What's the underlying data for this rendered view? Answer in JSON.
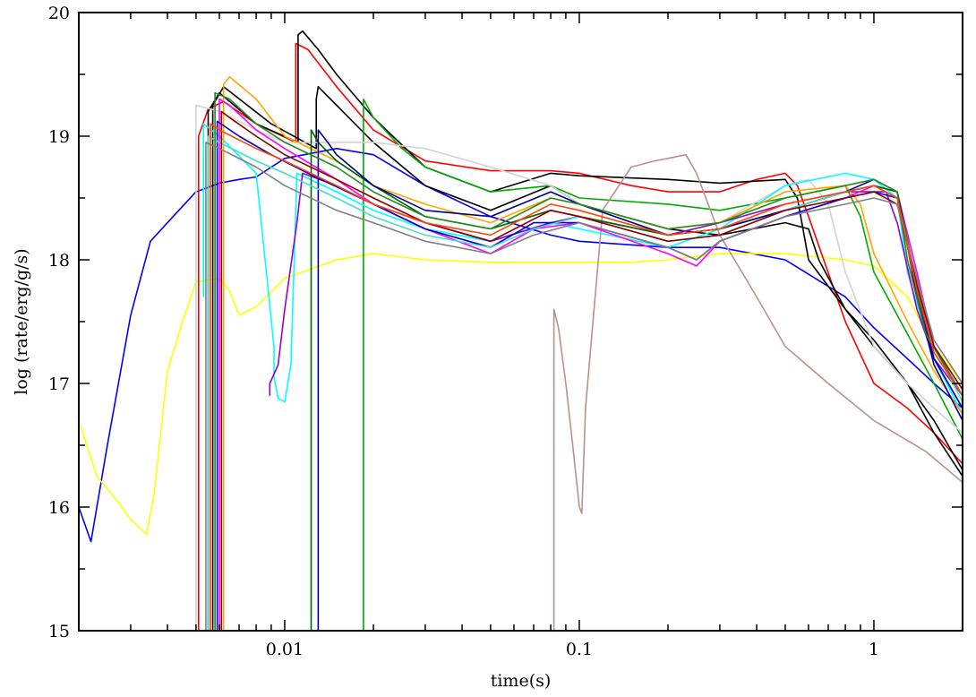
{
  "chart_data": {
    "type": "line",
    "title": "",
    "xlabel": "time(s)",
    "ylabel": "log (rate/erg/g/s)",
    "xscale": "log",
    "xlim": [
      0.002,
      2.0
    ],
    "ylim": [
      15,
      20
    ],
    "grid": false,
    "legend": "none",
    "x_tick_labels": [
      {
        "value": 0.01,
        "label": "0.01"
      },
      {
        "value": 0.1,
        "label": "0.1"
      },
      {
        "value": 1,
        "label": "1"
      }
    ],
    "y_tick_labels": [
      {
        "value": 15,
        "label": "15"
      },
      {
        "value": 16,
        "label": "16"
      },
      {
        "value": 17,
        "label": "17"
      },
      {
        "value": 18,
        "label": "18"
      },
      {
        "value": 19,
        "label": "19"
      },
      {
        "value": 20,
        "label": "20"
      }
    ],
    "series": [
      {
        "color": "#0000ff",
        "x": [
          0.002,
          0.0022,
          0.0025,
          0.003,
          0.0035,
          0.004,
          0.005,
          0.006,
          0.007,
          0.008,
          0.01,
          0.015,
          0.02,
          0.03,
          0.05,
          0.08,
          0.1,
          0.2,
          0.3,
          0.5,
          0.8,
          1.0,
          1.3,
          1.6,
          2.0
        ],
        "y": [
          16.0,
          15.72,
          16.5,
          17.55,
          18.15,
          18.3,
          18.55,
          18.62,
          18.65,
          18.67,
          18.82,
          18.9,
          18.85,
          18.6,
          18.35,
          18.2,
          18.15,
          18.1,
          18.1,
          18.0,
          17.7,
          17.45,
          17.2,
          17.0,
          16.8
        ]
      },
      {
        "color": "#ffff00",
        "x": [
          0.002,
          0.0023,
          0.0027,
          0.003,
          0.0034,
          0.0036,
          0.004,
          0.0045,
          0.005,
          0.006,
          0.0065,
          0.007,
          0.008,
          0.01,
          0.015,
          0.02,
          0.03,
          0.05,
          0.1,
          0.15,
          0.2,
          0.3,
          0.5,
          0.8,
          1.0,
          1.3,
          1.6,
          2.0
        ],
        "y": [
          16.7,
          16.25,
          16.05,
          15.9,
          15.78,
          16.1,
          17.1,
          17.5,
          17.82,
          17.85,
          17.75,
          17.55,
          17.62,
          17.85,
          18.0,
          18.05,
          18.0,
          17.98,
          17.98,
          17.98,
          18.0,
          18.05,
          18.05,
          18.0,
          17.95,
          17.7,
          17.3,
          17.0
        ]
      },
      {
        "color": "#ff0000",
        "x": [
          0.0051,
          0.0051,
          0.0055,
          0.0062,
          0.008,
          0.0109,
          0.0109,
          0.012,
          0.015,
          0.02,
          0.03,
          0.05,
          0.08,
          0.1,
          0.15,
          0.2,
          0.3,
          0.4,
          0.5,
          0.55,
          0.6,
          0.8,
          1.0,
          1.3,
          1.6,
          2.0
        ],
        "y": [
          15.0,
          19.0,
          19.22,
          19.28,
          19.1,
          18.95,
          19.75,
          19.7,
          19.4,
          19.05,
          18.8,
          18.72,
          18.72,
          18.7,
          18.6,
          18.55,
          18.55,
          18.65,
          18.7,
          18.6,
          18.35,
          17.5,
          17.0,
          16.8,
          16.6,
          16.35
        ]
      },
      {
        "color": "#000000",
        "x": [
          0.0055,
          0.0055,
          0.006,
          0.008,
          0.0111,
          0.0111,
          0.0115,
          0.013,
          0.015,
          0.02,
          0.03,
          0.05,
          0.08,
          0.1,
          0.2,
          0.3,
          0.5,
          0.55,
          0.6,
          0.8,
          1.0,
          1.3,
          1.6,
          2.0
        ],
        "y": [
          15.0,
          19.2,
          19.35,
          19.1,
          18.95,
          19.82,
          19.85,
          19.7,
          19.5,
          19.15,
          18.75,
          18.55,
          18.7,
          18.68,
          18.65,
          18.62,
          18.65,
          18.5,
          18.0,
          17.6,
          17.35,
          17.0,
          16.7,
          16.3
        ]
      },
      {
        "color": "#000000",
        "x": [
          0.0057,
          0.0057,
          0.0062,
          0.009,
          0.0128,
          0.0128,
          0.013,
          0.015,
          0.02,
          0.03,
          0.05,
          0.08,
          0.1,
          0.2,
          0.3,
          0.5,
          0.6,
          0.65,
          0.8,
          1.0,
          1.3,
          1.6,
          2.0
        ],
        "y": [
          15.0,
          19.25,
          19.4,
          19.1,
          18.9,
          19.3,
          19.4,
          19.25,
          18.95,
          18.6,
          18.4,
          18.6,
          18.45,
          18.25,
          18.2,
          18.3,
          18.25,
          18.0,
          17.6,
          17.3,
          17.0,
          16.6,
          16.25
        ]
      },
      {
        "color": "#00aa00",
        "x": [
          0.0185,
          0.0185,
          0.02,
          0.025,
          0.03,
          0.05,
          0.08,
          0.1,
          0.2,
          0.3,
          0.5,
          0.8,
          0.9,
          1.0,
          1.3,
          1.6,
          2.0
        ],
        "y": [
          15.0,
          19.3,
          19.15,
          18.9,
          18.75,
          18.55,
          18.6,
          18.5,
          18.45,
          18.4,
          18.5,
          18.6,
          18.35,
          17.9,
          17.4,
          17.0,
          16.55
        ]
      },
      {
        "color": "#bc8f8f",
        "x": [
          0.082,
          0.082,
          0.085,
          0.09,
          0.095,
          0.1,
          0.102,
          0.105,
          0.12,
          0.15,
          0.18,
          0.2,
          0.23,
          0.25,
          0.3,
          0.4,
          0.5,
          0.7,
          1.0,
          1.5,
          2.0
        ],
        "y": [
          15.0,
          17.6,
          17.45,
          17.0,
          16.5,
          16.0,
          15.95,
          16.8,
          18.4,
          18.75,
          18.8,
          18.82,
          18.85,
          18.7,
          18.2,
          17.7,
          17.3,
          17.0,
          16.7,
          16.45,
          16.2
        ]
      },
      {
        "color": "#d3d3d3",
        "x": [
          0.005,
          0.005,
          0.006,
          0.008,
          0.01,
          0.015,
          0.02,
          0.03,
          0.05,
          0.08,
          0.1,
          0.2,
          0.3,
          0.5,
          0.6,
          0.7,
          0.8,
          1.0,
          1.3,
          1.6,
          2.0
        ],
        "y": [
          15.0,
          19.25,
          19.2,
          19.05,
          18.95,
          18.95,
          18.95,
          18.9,
          18.75,
          18.6,
          18.45,
          18.2,
          18.3,
          18.6,
          18.65,
          18.45,
          17.9,
          17.3,
          17.0,
          16.8,
          16.6
        ]
      },
      {
        "color": "#00ffff",
        "x": [
          0.0053,
          0.0053,
          0.006,
          0.008,
          0.0092,
          0.0092,
          0.0095,
          0.01,
          0.0105,
          0.011,
          0.015,
          0.02,
          0.03,
          0.05,
          0.08,
          0.1,
          0.2,
          0.3,
          0.5,
          0.8,
          1.0,
          1.2,
          1.3,
          1.6,
          2.0
        ],
        "y": [
          17.7,
          19.1,
          19.0,
          18.7,
          17.3,
          17.05,
          16.88,
          16.85,
          17.15,
          18.7,
          18.55,
          18.4,
          18.25,
          18.15,
          18.3,
          18.25,
          18.1,
          18.25,
          18.6,
          18.7,
          18.65,
          18.5,
          17.9,
          17.2,
          16.75
        ]
      },
      {
        "color": "#9400d3",
        "x": [
          0.0089,
          0.0089,
          0.0095,
          0.01,
          0.011,
          0.0115,
          0.015,
          0.02,
          0.03,
          0.05,
          0.08,
          0.1,
          0.2,
          0.3,
          0.5,
          0.8,
          1.0,
          1.1,
          1.2,
          1.4,
          1.6,
          2.0
        ],
        "y": [
          16.9,
          17.0,
          17.15,
          17.6,
          18.3,
          18.7,
          18.6,
          18.45,
          18.3,
          18.15,
          18.3,
          18.35,
          18.2,
          18.3,
          18.45,
          18.55,
          18.55,
          18.55,
          18.3,
          17.6,
          17.2,
          16.9
        ]
      },
      {
        "color": "#ffa500",
        "x": [
          0.0062,
          0.0062,
          0.0065,
          0.008,
          0.01,
          0.015,
          0.02,
          0.03,
          0.05,
          0.08,
          0.1,
          0.2,
          0.3,
          0.5,
          0.8,
          0.9,
          1.0,
          1.3,
          1.6,
          2.0
        ],
        "y": [
          15.0,
          19.42,
          19.48,
          19.3,
          19.0,
          18.8,
          18.6,
          18.45,
          18.3,
          18.5,
          18.45,
          18.25,
          18.3,
          18.55,
          18.6,
          18.45,
          18.05,
          17.5,
          17.1,
          16.75
        ]
      },
      {
        "color": "#ff00ff",
        "x": [
          0.006,
          0.006,
          0.0065,
          0.008,
          0.01,
          0.015,
          0.02,
          0.03,
          0.05,
          0.07,
          0.1,
          0.2,
          0.25,
          0.3,
          0.5,
          0.8,
          1.0,
          1.2,
          1.4,
          1.6,
          2.0
        ],
        "y": [
          15.0,
          19.3,
          19.25,
          19.05,
          18.9,
          18.65,
          18.45,
          18.25,
          18.05,
          18.25,
          18.3,
          18.05,
          17.95,
          18.15,
          18.35,
          18.5,
          18.6,
          18.55,
          17.9,
          17.3,
          16.9
        ]
      },
      {
        "color": "#006400",
        "x": [
          0.0123,
          0.0123,
          0.013,
          0.015,
          0.02,
          0.03,
          0.05,
          0.08,
          0.1,
          0.2,
          0.3,
          0.5,
          0.8,
          1.0,
          1.2,
          1.4,
          1.6,
          2.0
        ],
        "y": [
          15.0,
          19.05,
          18.95,
          18.8,
          18.6,
          18.35,
          18.25,
          18.4,
          18.35,
          18.2,
          18.25,
          18.4,
          18.55,
          18.6,
          18.55,
          17.8,
          17.2,
          16.8
        ]
      },
      {
        "color": "#00008b",
        "x": [
          0.013,
          0.013,
          0.014,
          0.015,
          0.02,
          0.03,
          0.05,
          0.08,
          0.1,
          0.2,
          0.3,
          0.5,
          0.8,
          1.0,
          1.2,
          1.4,
          1.6,
          2.0
        ],
        "y": [
          15.0,
          19.05,
          18.95,
          18.85,
          18.6,
          18.4,
          18.35,
          18.55,
          18.45,
          18.2,
          18.25,
          18.4,
          18.55,
          18.65,
          18.55,
          17.7,
          17.15,
          16.7
        ]
      },
      {
        "color": "#0000cd",
        "x": [
          0.0059,
          0.0059,
          0.007,
          0.009,
          0.012,
          0.02,
          0.03,
          0.05,
          0.07,
          0.1,
          0.2,
          0.25,
          0.3,
          0.5,
          0.8,
          1.0,
          1.2,
          1.4,
          1.6,
          2.0
        ],
        "y": [
          15.0,
          19.12,
          19.0,
          18.85,
          18.7,
          18.45,
          18.25,
          18.1,
          18.3,
          18.3,
          18.1,
          18.0,
          18.15,
          18.35,
          18.5,
          18.55,
          18.5,
          17.75,
          17.2,
          16.8
        ]
      },
      {
        "color": "#40e0d0",
        "x": [
          0.0055,
          0.0055,
          0.006,
          0.008,
          0.01,
          0.015,
          0.02,
          0.03,
          0.05,
          0.07,
          0.1,
          0.2,
          0.3,
          0.5,
          0.8,
          1.0,
          1.2,
          1.4,
          1.6,
          2.0
        ],
        "y": [
          15.0,
          19.0,
          18.95,
          18.8,
          18.7,
          18.5,
          18.35,
          18.2,
          18.1,
          18.25,
          18.35,
          18.15,
          18.2,
          18.4,
          18.55,
          18.6,
          18.5,
          17.8,
          17.3,
          16.85
        ]
      },
      {
        "color": "#228b22",
        "x": [
          0.0058,
          0.0058,
          0.0065,
          0.008,
          0.01,
          0.015,
          0.02,
          0.03,
          0.05,
          0.08,
          0.1,
          0.2,
          0.3,
          0.5,
          0.8,
          1.0,
          1.2,
          1.3,
          1.5,
          2.0
        ],
        "y": [
          15.0,
          19.35,
          19.3,
          19.1,
          18.95,
          18.75,
          18.55,
          18.35,
          18.25,
          18.5,
          18.45,
          18.25,
          18.3,
          18.5,
          18.6,
          18.65,
          18.55,
          18.0,
          17.4,
          16.9
        ]
      },
      {
        "color": "#8b0000",
        "x": [
          0.0061,
          0.0061,
          0.0065,
          0.008,
          0.01,
          0.015,
          0.02,
          0.03,
          0.05,
          0.08,
          0.1,
          0.2,
          0.3,
          0.5,
          0.8,
          1.0,
          1.2,
          1.4,
          1.6,
          2.0
        ],
        "y": [
          15.0,
          19.2,
          19.15,
          19.0,
          18.85,
          18.65,
          18.5,
          18.3,
          18.15,
          18.4,
          18.35,
          18.15,
          18.2,
          18.4,
          18.5,
          18.55,
          18.45,
          17.8,
          17.3,
          16.95
        ]
      },
      {
        "color": "#808080",
        "x": [
          0.0054,
          0.0054,
          0.006,
          0.008,
          0.01,
          0.015,
          0.02,
          0.03,
          0.05,
          0.07,
          0.1,
          0.2,
          0.25,
          0.3,
          0.5,
          0.8,
          1.0,
          1.2,
          1.4,
          1.6,
          2.0
        ],
        "y": [
          15.0,
          18.95,
          18.9,
          18.75,
          18.6,
          18.4,
          18.3,
          18.15,
          18.05,
          18.2,
          18.3,
          18.1,
          18.0,
          18.15,
          18.35,
          18.45,
          18.5,
          18.45,
          17.85,
          17.35,
          17.0
        ]
      },
      {
        "color": "#ff4500",
        "x": [
          0.0056,
          0.0056,
          0.006,
          0.008,
          0.01,
          0.015,
          0.02,
          0.03,
          0.05,
          0.08,
          0.1,
          0.2,
          0.3,
          0.5,
          0.8,
          1.0,
          1.2,
          1.4,
          1.6,
          2.0
        ],
        "y": [
          15.0,
          19.1,
          19.05,
          18.9,
          18.8,
          18.6,
          18.45,
          18.3,
          18.2,
          18.45,
          18.4,
          18.2,
          18.25,
          18.45,
          18.55,
          18.6,
          18.5,
          17.75,
          17.25,
          16.9
        ]
      }
    ]
  }
}
